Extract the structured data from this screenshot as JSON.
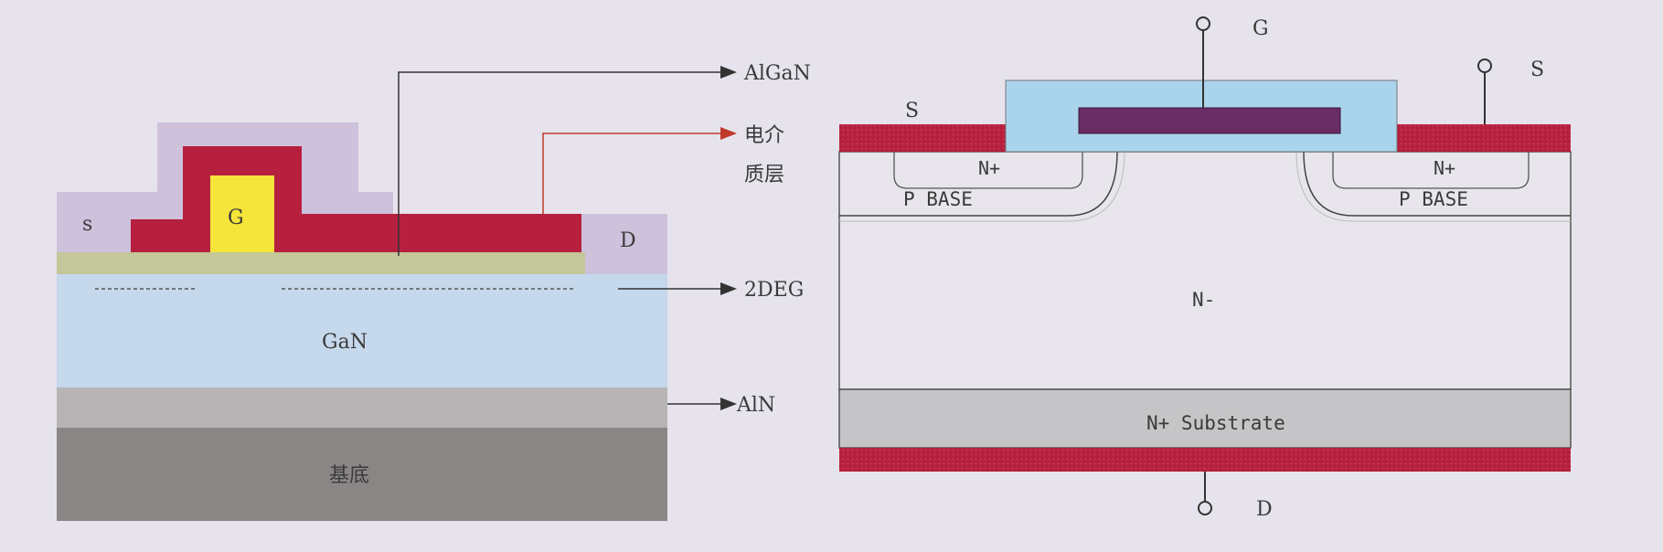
{
  "hemt": {
    "source_label": "s",
    "gate_label": "G",
    "drain_label": "D",
    "gan_label": "GaN",
    "substrate_label": "基底",
    "callouts": {
      "algan": "AlGaN",
      "dielectric_line1": "电介",
      "dielectric_line2": "质层",
      "twodeg": "2DEG",
      "aln": "AlN"
    }
  },
  "mosfet": {
    "gate_terminal": "G",
    "source_terminal_right": "S",
    "source_label_left": "S",
    "nplus_left": "N+",
    "nplus_right": "N+",
    "pbase_left": "P BASE",
    "pbase_right": "P BASE",
    "drift_label": "N-",
    "substrate_label": "N+  Substrate",
    "drain_terminal": "D"
  },
  "colors": {
    "background": "#e6e3ec",
    "metal_red": "#b6203e",
    "gate_yellow": "#f5e43a",
    "contact_lilac": "#cdc1dc",
    "algan_green": "#c3c79a",
    "gan_blue": "#c5d8ec",
    "aln_gray": "#b7b4b5",
    "substrate_gray": "#8b8686",
    "oxide_blue": "#a9d4ec",
    "poly_purple": "#6a2d63"
  }
}
